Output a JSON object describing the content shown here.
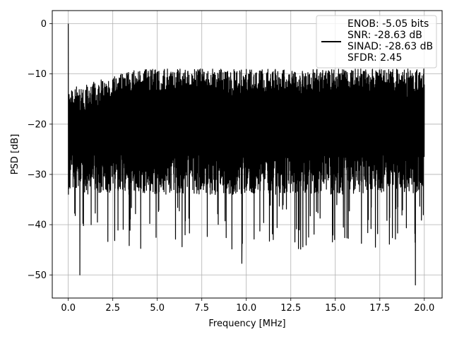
{
  "chart_data": {
    "type": "line",
    "title": "",
    "xlabel": "Frequency [MHz]",
    "ylabel": "PSD [dB]",
    "xlim": [
      -0.9,
      21.0
    ],
    "ylim": [
      -54.6,
      2.6
    ],
    "xticks": [
      0.0,
      2.5,
      5.0,
      7.5,
      10.0,
      12.5,
      15.0,
      17.5,
      20.0
    ],
    "xtick_labels": [
      "0.0",
      "2.5",
      "5.0",
      "7.5",
      "10.0",
      "12.5",
      "15.0",
      "17.5",
      "20.0"
    ],
    "yticks": [
      0,
      -10,
      -20,
      -30,
      -40,
      -50
    ],
    "ytick_labels": [
      "0",
      "−10",
      "−20",
      "−30",
      "−40",
      "−50"
    ],
    "grid": true,
    "legend_position": "top-right",
    "line_color": "#000000",
    "series": [
      {
        "legend_lines": [
          "ENOB: -5.05 bits",
          "SNR: -28.63 dB",
          "SINAD: -28.63 dB",
          "SFDR: 2.45"
        ],
        "x_range": [
          0.0,
          20.0
        ],
        "peak": {
          "x": 0.0,
          "y": 0.0
        },
        "notable_minima": [
          {
            "x": 0.65,
            "y": -50.0
          },
          {
            "x": 9.75,
            "y": -47.7
          },
          {
            "x": 19.5,
            "y": -52.0
          }
        ],
        "typical_max_db": -7,
        "typical_min_db": -32
      }
    ]
  }
}
